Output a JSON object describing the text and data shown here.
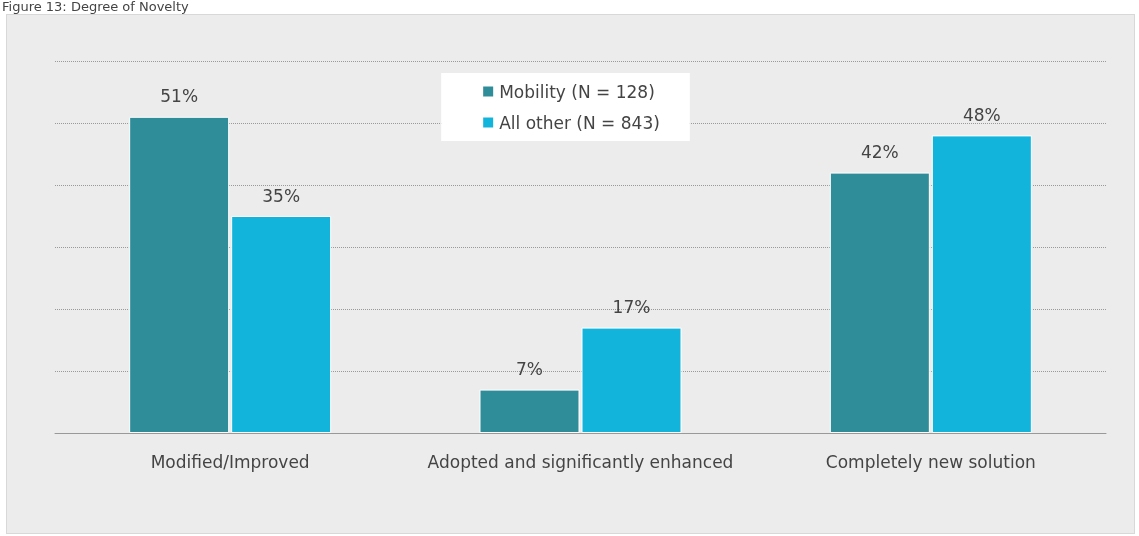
{
  "chart_data": {
    "type": "bar",
    "title": "Figure 13: Degree of Novelty",
    "categories": [
      "Modified/Improved",
      "Adopted and significantly enhanced",
      "Completely new solution"
    ],
    "series": [
      {
        "name": "Mobility (N = 128)",
        "color": "#2f8c99",
        "values": [
          51,
          7,
          42
        ],
        "value_labels": [
          "51%",
          "7%",
          "42%"
        ]
      },
      {
        "name": "All other (N = 843)",
        "color": "#13b4dc",
        "values": [
          35,
          17,
          48
        ],
        "value_labels": [
          "35%",
          "17%",
          "48%"
        ]
      }
    ],
    "grid": "y",
    "legend": "top"
  }
}
